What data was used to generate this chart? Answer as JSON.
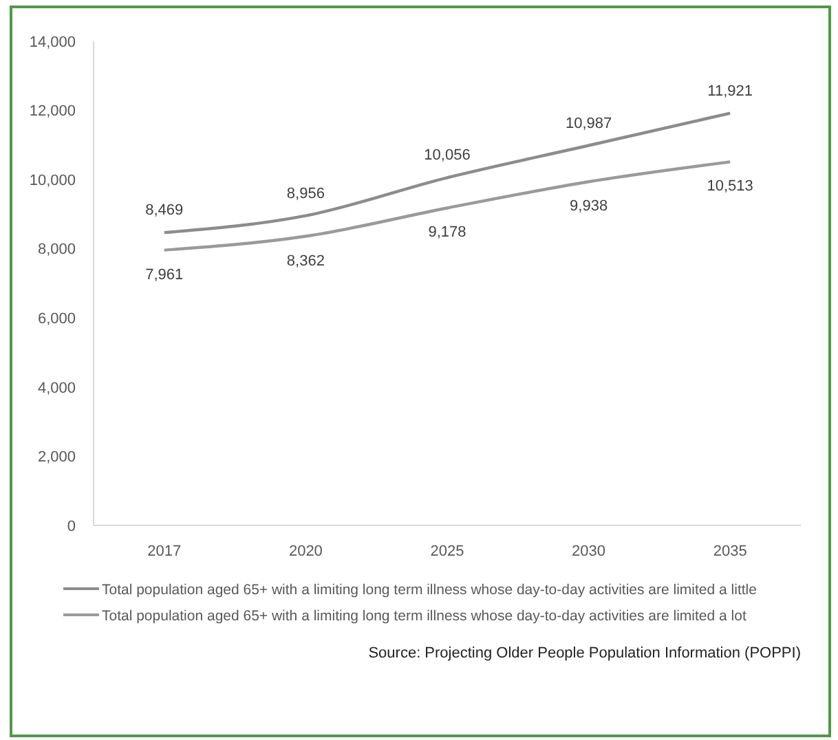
{
  "chart_data": {
    "type": "line",
    "categories": [
      "2017",
      "2020",
      "2025",
      "2030",
      "2035"
    ],
    "series": [
      {
        "name": "Total population aged 65+ with a limiting long term illness whose day-to-day activities are limited a little",
        "color": "#8c8c8c",
        "values": [
          8469,
          8956,
          10056,
          10987,
          11921
        ],
        "value_labels": [
          "8,469",
          "8,956",
          "10,056",
          "10,987",
          "11,921"
        ]
      },
      {
        "name": "Total population aged 65+ with a limiting long term illness whose day-to-day activities are limited a lot",
        "color": "#9a9a9a",
        "values": [
          7961,
          8362,
          9178,
          9938,
          10513
        ],
        "value_labels": [
          "7,961",
          "8,362",
          "9,178",
          "9,938",
          "10,513"
        ]
      }
    ],
    "ylim": [
      0,
      14000
    ],
    "yticks": [
      {
        "value": 0,
        "label": "0"
      },
      {
        "value": 2000,
        "label": "2,000"
      },
      {
        "value": 4000,
        "label": "4,000"
      },
      {
        "value": 6000,
        "label": "6,000"
      },
      {
        "value": 8000,
        "label": "8,000"
      },
      {
        "value": 10000,
        "label": "10,000"
      },
      {
        "value": 12000,
        "label": "12,000"
      },
      {
        "value": 14000,
        "label": "14,000"
      }
    ],
    "grid": false,
    "legend": "bottom",
    "marker": "none",
    "line_style": "solid",
    "annotations": [
      "Source: Projecting Older People Population Information (POPPI)"
    ]
  }
}
